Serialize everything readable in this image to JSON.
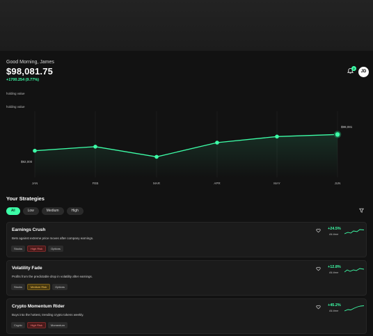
{
  "header": {
    "greeting": "Good Morning, James",
    "balance": "$98,081.75",
    "change": "+1700.254 (9.77%)",
    "notification_count": "2",
    "avatar_initials": "JD"
  },
  "labels": {
    "holding_value_1": "holding value",
    "holding_value_2": "holding value"
  },
  "chart_data": {
    "type": "line",
    "categories": [
      "JAN",
      "FEB",
      "MAR",
      "APR",
      "MAY",
      "JUN"
    ],
    "values": [
      92000,
      93000,
      90500,
      94000,
      95500,
      96000
    ],
    "y_labels": {
      "low": "$92,000",
      "high": "$98,081"
    },
    "grid": true,
    "color": "#3dffa8"
  },
  "strategies": {
    "title": "Your Strategies",
    "filters": [
      "All",
      "Low",
      "Medium",
      "High"
    ],
    "active_filter": "All",
    "cards": [
      {
        "name": "Earnings Crush",
        "description": "Bets against extreme price moves after company earnings.",
        "tags": [
          {
            "label": "Stocks",
            "kind": "plain"
          },
          {
            "label": "High Risk",
            "kind": "high"
          },
          {
            "label": "Options",
            "kind": "plain"
          }
        ],
        "return": "+24.5%",
        "period": "All-time"
      },
      {
        "name": "Volatility Fade",
        "description": "Profits from the predictable drop in volatility after earnings.",
        "tags": [
          {
            "label": "Stocks",
            "kind": "plain"
          },
          {
            "label": "Medium Risk",
            "kind": "med"
          },
          {
            "label": "Options",
            "kind": "plain"
          }
        ],
        "return": "+12.8%",
        "period": "All-time"
      },
      {
        "name": "Crypto Momentum Rider",
        "description": "Buys into the hottest, trending crypto tokens weekly.",
        "tags": [
          {
            "label": "Crypto",
            "kind": "plain"
          },
          {
            "label": "High Risk",
            "kind": "high"
          },
          {
            "label": "Momentum",
            "kind": "plain"
          }
        ],
        "return": "+45.2%",
        "period": "All-time"
      }
    ]
  },
  "colors": {
    "accent": "#3dffa8",
    "background": "#121212"
  }
}
